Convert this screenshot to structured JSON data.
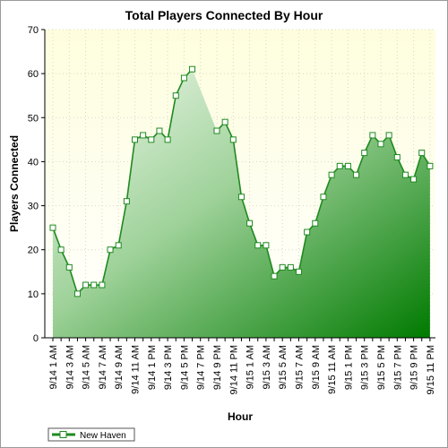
{
  "chart_data": {
    "type": "area",
    "title": "Total Players Connected By Hour",
    "xlabel": "Hour",
    "ylabel": "Players Connected",
    "ylim": [
      0,
      70
    ],
    "yticks": [
      0,
      10,
      20,
      30,
      40,
      50,
      60,
      70
    ],
    "grid": true,
    "legend_position": "bottom-left",
    "colors": {
      "line": "#1f8a1f",
      "area_light": "#e8f4e6",
      "area_dark": "#007a00",
      "plot_bg_top": "#fefede",
      "plot_bg_bottom": "#ffffff"
    },
    "x": [
      "9/14 1 AM",
      "9/14 2 AM",
      "9/14 3 AM",
      "9/14 4 AM",
      "9/14 5 AM",
      "9/14 6 AM",
      "9/14 7 AM",
      "9/14 8 AM",
      "9/14 9 AM",
      "9/14 10 AM",
      "9/14 11 AM",
      "9/14 12 PM",
      "9/14 1 PM",
      "9/14 2 PM",
      "9/14 3 PM",
      "9/14 4 PM",
      "9/14 5 PM",
      "9/14 6 PM",
      "9/14 7 PM",
      "9/14 8 PM",
      "9/14 9 PM",
      "9/14 10 PM",
      "9/14 11 PM",
      "9/15 12 AM",
      "9/15 1 AM",
      "9/15 2 AM",
      "9/15 3 AM",
      "9/15 4 AM",
      "9/15 5 AM",
      "9/15 6 AM",
      "9/15 7 AM",
      "9/15 8 AM",
      "9/15 9 AM",
      "9/15 10 AM",
      "9/15 11 AM",
      "9/15 12 PM",
      "9/15 1 PM",
      "9/15 2 PM",
      "9/15 3 PM",
      "9/15 4 PM",
      "9/15 5 PM",
      "9/15 6 PM",
      "9/15 7 PM",
      "9/15 8 PM",
      "9/15 9 PM",
      "9/15 10 PM",
      "9/15 11 PM"
    ],
    "tick_labels": [
      "9/14 1 AM",
      "9/14 3 AM",
      "9/14 5 AM",
      "9/14 7 AM",
      "9/14 9 AM",
      "9/14 11 AM",
      "9/14 1 PM",
      "9/14 3 PM",
      "9/14 5 PM",
      "9/14 7 PM",
      "9/14 9 PM",
      "9/14 11 PM",
      "9/15 1 AM",
      "9/15 3 AM",
      "9/15 5 AM",
      "9/15 7 AM",
      "9/15 9 AM",
      "9/15 11 AM",
      "9/15 1 PM",
      "9/15 3 PM",
      "9/15 5 PM",
      "9/15 7 PM",
      "9/15 9 PM",
      "9/15 11 PM"
    ],
    "series": [
      {
        "name": "New Haven",
        "values": [
          25,
          20,
          16,
          10,
          12,
          12,
          12,
          20,
          21,
          31,
          45,
          46,
          45,
          47,
          45,
          55,
          59,
          61,
          null,
          null,
          47,
          49,
          45,
          32,
          26,
          21,
          21,
          14,
          16,
          16,
          15,
          24,
          26,
          32,
          37,
          39,
          39,
          37,
          42,
          46,
          44,
          46,
          41,
          37,
          36,
          42,
          39
        ]
      }
    ]
  }
}
